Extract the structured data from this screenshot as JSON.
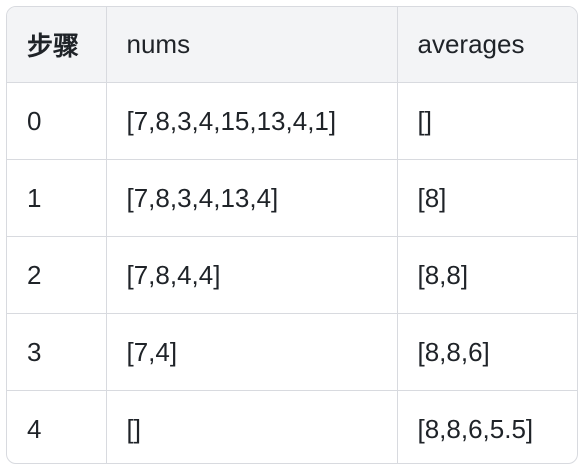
{
  "table": {
    "headers": [
      "步骤",
      "nums",
      "averages"
    ],
    "rows": [
      [
        "0",
        "[7,8,3,4,15,13,4,1]",
        "[]"
      ],
      [
        "1",
        "[7,8,3,4,13,4]",
        "[8]"
      ],
      [
        "2",
        "[7,8,4,4]",
        "[8,8]"
      ],
      [
        "3",
        "[7,4]",
        "[8,8,6]"
      ],
      [
        "4",
        "[]",
        "[8,8,6,5.5]"
      ]
    ]
  }
}
